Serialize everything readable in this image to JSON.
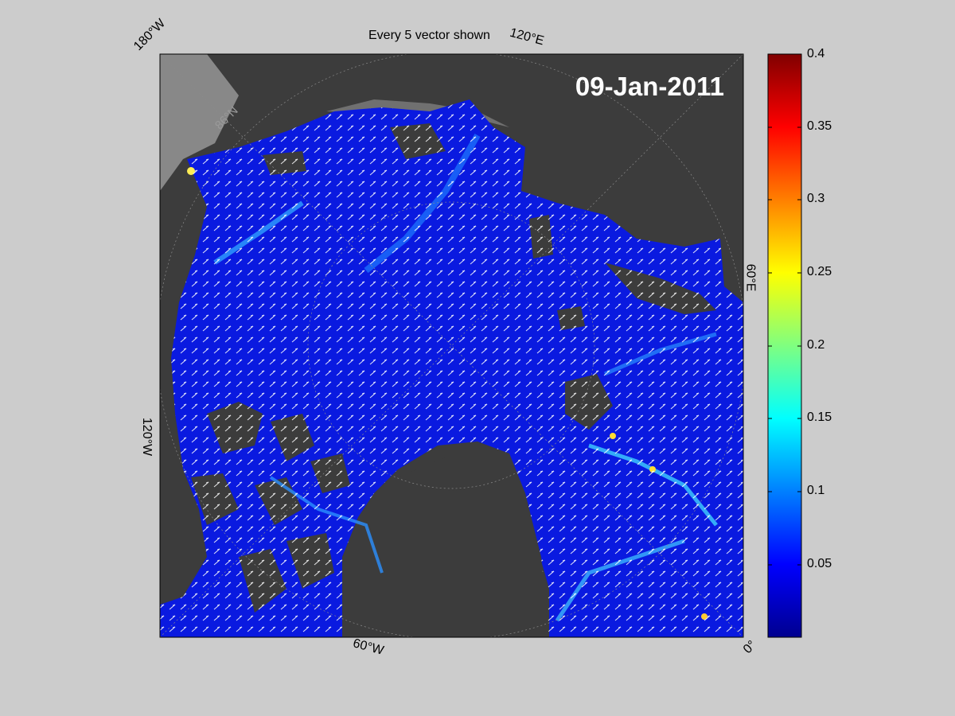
{
  "figure": {
    "title": "Every 5 vector shown",
    "date": "09-Jan-2011",
    "longitude_labels": [
      "180°W",
      "120°E",
      "60°E",
      "0°",
      "60°W",
      "120°W"
    ],
    "latitude_label": "86°N"
  },
  "colorbar": {
    "colormap": "jet",
    "min": 0,
    "max": 0.4,
    "ticks": [
      "0.4",
      "0.35",
      "0.3",
      "0.25",
      "0.2",
      "0.15",
      "0.1",
      "0.05"
    ]
  },
  "colors": {
    "background": "#cccccc",
    "land": "#3c3c3c",
    "water_low": "#0a1ae0",
    "vectors": "#ffffff"
  }
}
